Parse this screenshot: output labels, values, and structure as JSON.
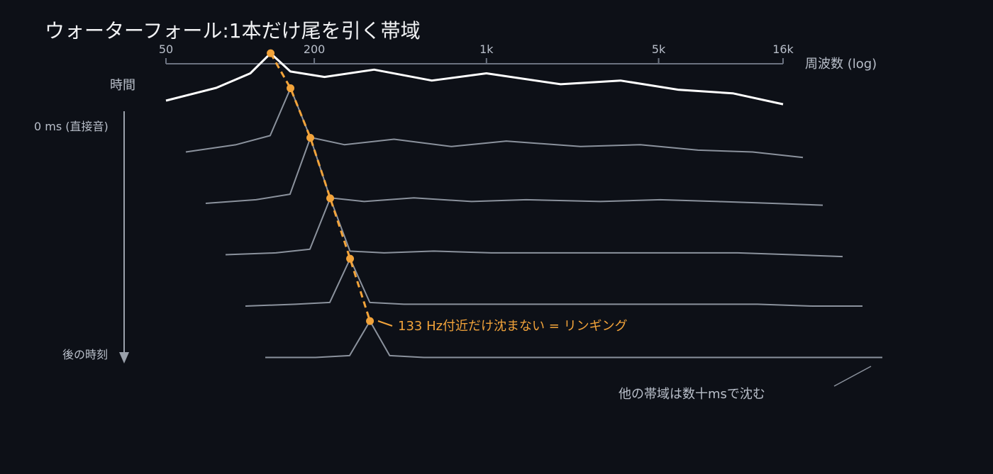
{
  "title": "ウォーターフォール:1本だけ尾を引く帯域",
  "colors": {
    "background": "#0d1017",
    "first_trace": "#ffffff",
    "later_traces": "#8b929d",
    "highlight": "#f2a33a",
    "axis": "#6b7280"
  },
  "x_axis": {
    "label": "周波数 (log)",
    "scale": "log",
    "tick_labels": [
      "50",
      "200",
      "1k",
      "5k",
      "16k"
    ]
  },
  "y_axis": {
    "label": "時間",
    "top_label": "0 ms (直接音)",
    "bottom_label": "後の時刻"
  },
  "annotations": {
    "ringing": "133 Hz付近だけ沈まない = リンギング",
    "others": "他の帯域は数十msで沈む"
  },
  "chart_data": {
    "type": "line",
    "title": "ウォーターフォール:1本だけ尾を引く帯域",
    "xlabel": "周波数 (log)",
    "ylabel": "時間",
    "xscale": "log",
    "xlim": [
      50,
      16000
    ],
    "x_ticks": [
      50,
      200,
      1000,
      5000,
      16000
    ],
    "x_tick_labels": [
      "50",
      "200",
      "1k",
      "5k",
      "16k"
    ],
    "x": [
      50,
      80,
      110,
      133,
      160,
      220,
      350,
      600,
      1000,
      2000,
      3500,
      6000,
      10000,
      16000
    ],
    "series": [
      {
        "slice": 0,
        "values": [
          -18,
          -11,
          -3,
          8,
          -2,
          -5,
          -1,
          -7,
          -3,
          -9,
          -7,
          -12,
          -14,
          -20
        ]
      },
      {
        "slice": 1,
        "values": [
          -34,
          -30,
          -25,
          1,
          -26,
          -30,
          -27,
          -31,
          -28,
          -31,
          -30,
          -33,
          -34,
          -37
        ]
      },
      {
        "slice": 2,
        "values": [
          -42,
          -40,
          -37,
          -6,
          -39,
          -41,
          -39,
          -41,
          -40,
          -41,
          -40,
          -41,
          -42,
          -43
        ]
      },
      {
        "slice": 3,
        "values": [
          -45,
          -44,
          -42,
          -14,
          -43,
          -44,
          -43,
          -44,
          -44,
          -44,
          -44,
          -44,
          -45,
          -46
        ]
      },
      {
        "slice": 4,
        "values": [
          -48,
          -47,
          -46,
          -22,
          -46,
          -47,
          -47,
          -47,
          -47,
          -47,
          -47,
          -47,
          -48,
          -48
        ]
      },
      {
        "slice": 5,
        "values": [
          -50,
          -50,
          -49,
          -30,
          -49,
          -50,
          -50,
          -50,
          -50,
          -50,
          -50,
          -50,
          -50,
          -50
        ]
      }
    ],
    "highlight": {
      "frequency_hz": 133,
      "label": "133 Hz付近だけ沈まない = リンギング"
    },
    "grid": false,
    "legend": "none"
  }
}
